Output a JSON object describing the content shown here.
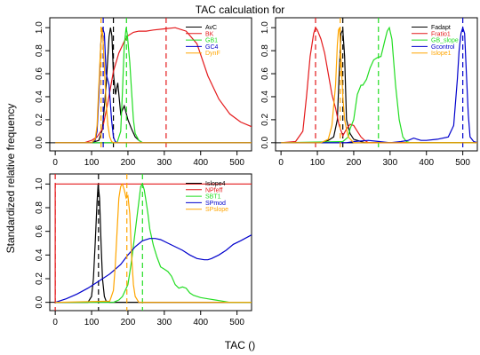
{
  "figure": {
    "title": "TAC calculation for",
    "xlabel": "TAC ()",
    "ylabel": "Standardized relative frequency"
  },
  "chart_data": [
    {
      "type": "line",
      "panel": "top-left",
      "xlim": [
        -15,
        540
      ],
      "ylim": [
        0,
        1
      ],
      "x_ticks": [
        0,
        100,
        200,
        300,
        400,
        500
      ],
      "y_ticks": [
        0.0,
        0.2,
        0.4,
        0.6,
        0.8,
        1.0
      ],
      "legend_position": "top-right",
      "series": [
        {
          "name": "AvC",
          "color": "#000000",
          "x": [
            0,
            100,
            120,
            130,
            140,
            148,
            152,
            156,
            160,
            166,
            172,
            180,
            190,
            200,
            210,
            220,
            230,
            240,
            540
          ],
          "y": [
            0,
            0,
            0.02,
            0.12,
            0.5,
            0.92,
            1.0,
            0.93,
            0.6,
            0.42,
            0.52,
            0.25,
            0.32,
            0.2,
            0.12,
            0.05,
            0.02,
            0,
            0
          ],
          "vline": 160
        },
        {
          "name": "BK",
          "color": "#e41a1c",
          "x": [
            0,
            80,
            100,
            115,
            130,
            145,
            160,
            175,
            190,
            200,
            215,
            230,
            250,
            270,
            300,
            330,
            360,
            390,
            420,
            450,
            480,
            510,
            540
          ],
          "y": [
            0,
            0,
            0.02,
            0.05,
            0.12,
            0.35,
            0.62,
            0.78,
            0.88,
            0.93,
            0.96,
            0.97,
            0.97,
            0.98,
            0.99,
            1.0,
            0.97,
            0.86,
            0.58,
            0.38,
            0.25,
            0.18,
            0.14
          ],
          "vline": 305
        },
        {
          "name": "GB1",
          "color": "#22dd22",
          "x": [
            0,
            170,
            180,
            185,
            190,
            195,
            198,
            205,
            210,
            215,
            220,
            230,
            240,
            540
          ],
          "y": [
            0,
            0,
            0.1,
            0.45,
            0.85,
            1.0,
            0.95,
            0.7,
            0.45,
            0.2,
            0.08,
            0.02,
            0,
            0
          ],
          "vline": 196
        },
        {
          "name": "GC4",
          "color": "#0000cc",
          "x": [
            0,
            100,
            110,
            115,
            120,
            125,
            130,
            135,
            140,
            148,
            155,
            160,
            165,
            170,
            540
          ],
          "y": [
            0,
            0,
            0.02,
            0.1,
            0.4,
            0.85,
            1.0,
            0.95,
            0.6,
            0.5,
            0.2,
            0.05,
            0.01,
            0,
            0
          ],
          "vline": 132
        },
        {
          "name": "DynF",
          "color": "#ffa500",
          "x": [
            0,
            100,
            110,
            115,
            120,
            125,
            128,
            131,
            135,
            140,
            145,
            150,
            155,
            160,
            540
          ],
          "y": [
            0,
            0,
            0.03,
            0.15,
            0.5,
            0.85,
            1.0,
            0.93,
            0.65,
            0.35,
            0.15,
            0.05,
            0.01,
            0,
            0
          ],
          "vline": 126
        }
      ]
    },
    {
      "type": "line",
      "panel": "top-right",
      "xlim": [
        -15,
        540
      ],
      "ylim": [
        0,
        1
      ],
      "x_ticks": [
        0,
        100,
        200,
        300,
        400,
        500
      ],
      "y_ticks": [
        0.0,
        0.2,
        0.4,
        0.6,
        0.8,
        1.0
      ],
      "legend_position": "top-right",
      "series": [
        {
          "name": "Fadapt",
          "color": "#000000",
          "x": [
            0,
            110,
            130,
            145,
            155,
            160,
            165,
            170,
            175,
            180,
            190,
            200,
            220,
            230,
            540
          ],
          "y": [
            0,
            0,
            0.02,
            0.05,
            0.2,
            0.6,
            0.95,
            0.98,
            0.75,
            0.2,
            0.08,
            0.03,
            0.01,
            0,
            0
          ],
          "vline": 170
        },
        {
          "name": "Fratio1",
          "color": "#e41a1c",
          "x": [
            0,
            40,
            60,
            70,
            80,
            90,
            95,
            100,
            110,
            120,
            130,
            140,
            150,
            160,
            170,
            180,
            190,
            200,
            210,
            220,
            230,
            240,
            540
          ],
          "y": [
            0,
            0.01,
            0.1,
            0.4,
            0.75,
            0.95,
            1.0,
            0.98,
            0.9,
            0.78,
            0.6,
            0.42,
            0.3,
            0.15,
            0.06,
            0.12,
            0.16,
            0.15,
            0.1,
            0.05,
            0.02,
            0,
            0
          ],
          "vline": 95
        },
        {
          "name": "GB_slope",
          "color": "#22dd22",
          "x": [
            0,
            170,
            185,
            190,
            200,
            210,
            220,
            225,
            235,
            245,
            255,
            265,
            275,
            285,
            292,
            298,
            305,
            315,
            325,
            335,
            345,
            355,
            540
          ],
          "y": [
            0,
            0.01,
            0.05,
            0.12,
            0.2,
            0.42,
            0.5,
            0.5,
            0.55,
            0.65,
            0.72,
            0.74,
            0.75,
            0.88,
            0.97,
            1.0,
            0.9,
            0.5,
            0.2,
            0.05,
            0.01,
            0,
            0
          ],
          "vline": 268
        },
        {
          "name": "Gcontrol",
          "color": "#0000cc",
          "x": [
            0,
            180,
            200,
            240,
            270,
            300,
            330,
            350,
            365,
            375,
            385,
            400,
            430,
            460,
            475,
            485,
            490,
            495,
            500,
            505,
            510,
            515,
            520,
            530,
            540
          ],
          "y": [
            0,
            0,
            0.01,
            0.02,
            0.01,
            0,
            0.01,
            0.02,
            0.04,
            0.03,
            0.02,
            0.02,
            0.03,
            0.05,
            0.15,
            0.55,
            0.8,
            0.95,
            1.0,
            0.95,
            0.6,
            0.25,
            0.05,
            0.01,
            0
          ],
          "vline": 500
        },
        {
          "name": "Islope1",
          "color": "#ffa500",
          "x": [
            0,
            110,
            130,
            140,
            150,
            155,
            158,
            161,
            165,
            170,
            175,
            180,
            185,
            200,
            540
          ],
          "y": [
            0,
            0,
            0.03,
            0.15,
            0.5,
            0.85,
            0.98,
            1.0,
            0.75,
            0.4,
            0.2,
            0.12,
            0.05,
            0,
            0
          ],
          "vline": 163
        }
      ]
    },
    {
      "type": "line",
      "panel": "bottom-left",
      "xlim": [
        -15,
        540
      ],
      "ylim": [
        0,
        1
      ],
      "x_ticks": [
        0,
        100,
        200,
        300,
        400,
        500
      ],
      "y_ticks": [
        0.0,
        0.2,
        0.4,
        0.6,
        0.8,
        1.0
      ],
      "legend_position": "top-right",
      "series": [
        {
          "name": "Islope4",
          "color": "#000000",
          "x": [
            0,
            90,
            100,
            105,
            110,
            115,
            118,
            122,
            126,
            130,
            135,
            140,
            150,
            540
          ],
          "y": [
            0,
            0,
            0.05,
            0.2,
            0.5,
            0.85,
            1.0,
            0.88,
            0.5,
            0.2,
            0.05,
            0.01,
            0,
            0
          ],
          "vline": 119
        },
        {
          "name": "NPfeff",
          "color": "#e41a1c",
          "x": [
            0,
            0,
            540
          ],
          "y": [
            0,
            1,
            1
          ],
          "vline": 0
        },
        {
          "name": "SBT1",
          "color": "#22dd22",
          "x": [
            0,
            160,
            175,
            185,
            200,
            210,
            220,
            230,
            235,
            240,
            245,
            250,
            255,
            260,
            270,
            280,
            290,
            300,
            310,
            320,
            330,
            340,
            350,
            360,
            370,
            380,
            400,
            420,
            440,
            460,
            480,
            540
          ],
          "y": [
            0,
            0,
            0.02,
            0.05,
            0.15,
            0.35,
            0.6,
            0.85,
            0.98,
            1.0,
            0.95,
            0.85,
            0.75,
            0.62,
            0.48,
            0.38,
            0.3,
            0.28,
            0.26,
            0.22,
            0.15,
            0.12,
            0.13,
            0.12,
            0.08,
            0.06,
            0.04,
            0.03,
            0.02,
            0.01,
            0,
            0
          ],
          "vline": 240
        },
        {
          "name": "SPmod",
          "color": "#0000cc",
          "x": [
            0,
            30,
            60,
            90,
            120,
            150,
            180,
            200,
            220,
            240,
            260,
            275,
            290,
            310,
            330,
            350,
            370,
            390,
            410,
            420,
            430,
            450,
            470,
            490,
            510,
            540
          ],
          "y": [
            0,
            0.03,
            0.07,
            0.12,
            0.18,
            0.24,
            0.32,
            0.4,
            0.47,
            0.52,
            0.54,
            0.54,
            0.53,
            0.5,
            0.47,
            0.44,
            0.4,
            0.37,
            0.36,
            0.36,
            0.37,
            0.4,
            0.44,
            0.49,
            0.52,
            0.57
          ]
        },
        {
          "name": "SPslope",
          "color": "#ffa500",
          "x": [
            0,
            150,
            160,
            165,
            170,
            175,
            180,
            185,
            190,
            195,
            200,
            205,
            210,
            215,
            220,
            230,
            540
          ],
          "y": [
            0,
            0.01,
            0.1,
            0.3,
            0.6,
            0.88,
            0.98,
            1.0,
            0.95,
            0.88,
            0.9,
            0.75,
            0.4,
            0.15,
            0.05,
            0,
            0
          ],
          "vline": 197
        }
      ]
    }
  ]
}
